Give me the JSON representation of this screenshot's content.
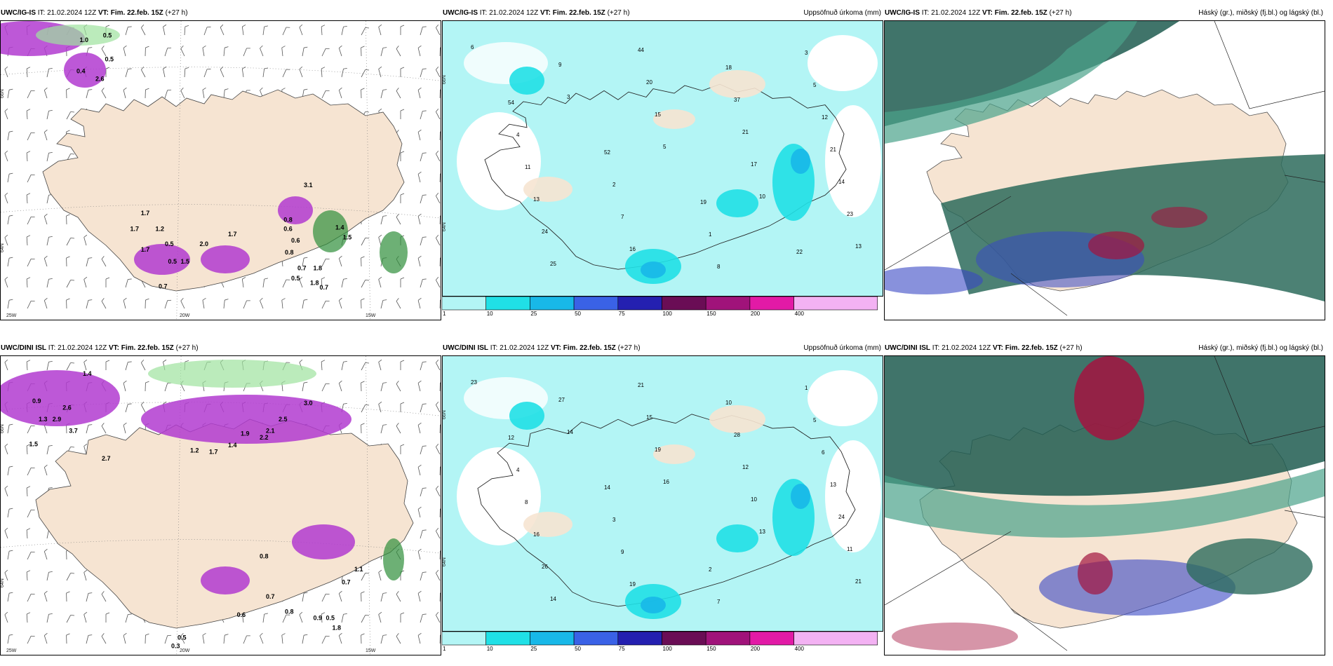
{
  "panels": [
    {
      "id": "p1",
      "kind": "precip_type",
      "model": "UWC/IG-IS",
      "run": "IT: 21.02.2024 12Z",
      "vt_label": "VT:",
      "valid": "Fim. 22.feb. 15Z",
      "lead": "(+27 h)",
      "right_title": "",
      "lat_labels": [
        "66N",
        "64N"
      ],
      "lon_labels": [
        "25W",
        "20W",
        "15W"
      ]
    },
    {
      "id": "p2",
      "kind": "accum",
      "model": "UWC/IG-IS",
      "run": "IT: 21.02.2024 12Z",
      "vt_label": "VT:",
      "valid": "Fim. 22.feb. 15Z",
      "lead": "(+27 h)",
      "right_title": "Uppsöfnuð úrkoma (mm)",
      "lat_labels": [
        "66N",
        "64N"
      ],
      "lon_labels": []
    },
    {
      "id": "p3",
      "kind": "cloud",
      "model": "UWC/IG-IS",
      "run": "IT: 21.02.2024 12Z",
      "vt_label": "VT:",
      "valid": "Fim. 22.feb. 15Z",
      "lead": "(+27 h)",
      "right_title": "Háský (gr.), miðský (fj.bl.) og lágský (bl.)",
      "lat_labels": [],
      "lon_labels": []
    },
    {
      "id": "p4",
      "kind": "precip_type",
      "model": "UWC/DINI ISL",
      "run": "IT: 21.02.2024 12Z",
      "vt_label": "VT:",
      "valid": "Fim. 22.feb. 15Z",
      "lead": "(+27 h)",
      "right_title": "",
      "lat_labels": [
        "66N",
        "64N"
      ],
      "lon_labels": [
        "25W",
        "20W",
        "15W"
      ]
    },
    {
      "id": "p5",
      "kind": "accum",
      "model": "UWC/DINI ISL",
      "run": "IT: 21.02.2024 12Z",
      "vt_label": "VT:",
      "valid": "Fim. 22.feb. 15Z",
      "lead": "(+27 h)",
      "right_title": "Uppsöfnuð úrkoma (mm)",
      "lat_labels": [
        "66N",
        "64N"
      ],
      "lon_labels": []
    },
    {
      "id": "p6",
      "kind": "cloud",
      "model": "UWC/DINI ISL",
      "run": "IT: 21.02.2024 12Z",
      "vt_label": "VT:",
      "valid": "Fim. 22.feb. 15Z",
      "lead": "(+27 h)",
      "right_title": "Háský (gr.), miðský (fj.bl.) og lágský (bl.)",
      "lat_labels": [],
      "lon_labels": []
    }
  ],
  "colorbar": {
    "ticks": [
      "1",
      "10",
      "25",
      "50",
      "75",
      "100",
      "150",
      "200",
      "400"
    ],
    "colors": [
      "#b3f5f5",
      "#20e0e6",
      "#18b8e8",
      "#3a62e6",
      "#2420b0",
      "#6a0d55",
      "#a0137a",
      "#e21aa6",
      "#f3b2f3"
    ]
  },
  "values": {
    "p1": [
      "1.0",
      "0.5",
      "0.5",
      "0.4",
      "1.7",
      "2.6",
      "1.2",
      "0.7",
      "1.7",
      "1.7",
      "0.5",
      "1.5",
      "0.8",
      "0.6",
      "0.7",
      "1.8",
      "0.7",
      "2.0",
      "1.7",
      "1.4",
      "0.5",
      "0.6",
      "3.1",
      "1.8",
      "0.8",
      "0.5",
      "1.5"
    ],
    "p2": [
      "6",
      "3",
      "5",
      "10",
      "13",
      "9",
      "15",
      "17",
      "23",
      "25",
      "20",
      "21",
      "14",
      "24",
      "44",
      "37",
      "21",
      "13",
      "16",
      "18",
      "12",
      "11",
      "7",
      "8",
      "5",
      "4",
      "2",
      "1",
      "3",
      "54",
      "52",
      "19",
      "22"
    ],
    "p4": [
      "1.4",
      "0.9",
      "1.3",
      "2.9",
      "2.6",
      "3.7",
      "1.5",
      "2.7",
      "3.0",
      "2.5",
      "2.2",
      "1.9",
      "1.4",
      "1.7",
      "1.2",
      "2.1",
      "0.8",
      "0.5",
      "0.7",
      "1.1",
      "0.8",
      "0.9",
      "1.8",
      "0.6",
      "0.7",
      "0.5",
      "0.3"
    ],
    "p5": [
      "23",
      "14",
      "16",
      "13",
      "21",
      "27",
      "19",
      "10",
      "11",
      "14",
      "15",
      "12",
      "24",
      "26",
      "21",
      "28",
      "13",
      "16",
      "19",
      "10",
      "6",
      "8",
      "9",
      "7",
      "5",
      "4",
      "3",
      "2",
      "1",
      "12",
      "14"
    ]
  },
  "legend_title_unit": "mm"
}
